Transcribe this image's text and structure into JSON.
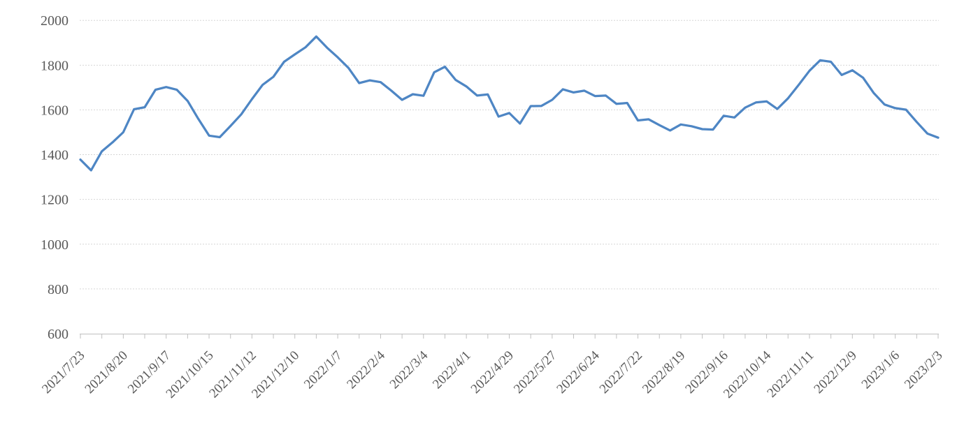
{
  "chart_data": {
    "type": "line",
    "title": "",
    "xlabel": "",
    "ylabel": "",
    "legend": "none",
    "grid": "horizontal-dashed",
    "ylim": [
      600,
      2000
    ],
    "y_ticks": [
      600,
      800,
      1000,
      1200,
      1400,
      1600,
      1800,
      2000
    ],
    "x_label_every": 4,
    "x": [
      "2021/7/23",
      "2021/7/30",
      "2021/8/6",
      "2021/8/13",
      "2021/8/20",
      "2021/8/27",
      "2021/9/3",
      "2021/9/10",
      "2021/9/17",
      "2021/9/24",
      "2021/10/1",
      "2021/10/8",
      "2021/10/15",
      "2021/10/22",
      "2021/10/29",
      "2021/11/5",
      "2021/11/12",
      "2021/11/19",
      "2021/11/26",
      "2021/12/3",
      "2021/12/10",
      "2021/12/17",
      "2021/12/24",
      "2021/12/31",
      "2022/1/7",
      "2022/1/14",
      "2022/1/21",
      "2022/1/28",
      "2022/2/4",
      "2022/2/11",
      "2022/2/18",
      "2022/2/25",
      "2022/3/4",
      "2022/3/11",
      "2022/3/18",
      "2022/3/25",
      "2022/4/1",
      "2022/4/8",
      "2022/4/15",
      "2022/4/22",
      "2022/4/29",
      "2022/5/6",
      "2022/5/13",
      "2022/5/20",
      "2022/5/27",
      "2022/6/3",
      "2022/6/10",
      "2022/6/17",
      "2022/6/24",
      "2022/7/1",
      "2022/7/8",
      "2022/7/15",
      "2022/7/22",
      "2022/7/29",
      "2022/8/5",
      "2022/8/12",
      "2022/8/19",
      "2022/8/26",
      "2022/9/2",
      "2022/9/9",
      "2022/9/16",
      "2022/9/23",
      "2022/9/30",
      "2022/10/7",
      "2022/10/14",
      "2022/10/21",
      "2022/10/28",
      "2022/11/4",
      "2022/11/11",
      "2022/11/18",
      "2022/11/25",
      "2022/12/2",
      "2022/12/9",
      "2022/12/16",
      "2022/12/23",
      "2022/12/30",
      "2023/1/6",
      "2023/1/13",
      "2023/1/20",
      "2023/1/27",
      "2023/2/3"
    ],
    "values": [
      1378,
      1330,
      1415,
      1455,
      1500,
      1603,
      1612,
      1690,
      1702,
      1690,
      1640,
      1560,
      1485,
      1478,
      1528,
      1580,
      1648,
      1712,
      1748,
      1815,
      1848,
      1880,
      1928,
      1878,
      1835,
      1788,
      1720,
      1732,
      1724,
      1686,
      1645,
      1670,
      1663,
      1768,
      1793,
      1734,
      1705,
      1664,
      1669,
      1570,
      1586,
      1539,
      1617,
      1618,
      1645,
      1692,
      1678,
      1686,
      1662,
      1664,
      1627,
      1631,
      1553,
      1558,
      1532,
      1508,
      1535,
      1527,
      1514,
      1512,
      1574,
      1566,
      1610,
      1633,
      1638,
      1604,
      1652,
      1712,
      1775,
      1822,
      1815,
      1756,
      1777,
      1744,
      1675,
      1624,
      1608,
      1601,
      1546,
      1494,
      1476
    ],
    "x_tick_labels": [
      "2021/7/23",
      "2021/8/20",
      "2021/9/17",
      "2021/10/15",
      "2021/11/12",
      "2021/12/10",
      "2022/1/7",
      "2022/2/4",
      "2022/3/4",
      "2022/4/1",
      "2022/4/29",
      "2022/5/27",
      "2022/6/24",
      "2022/7/22",
      "2022/8/19",
      "2022/9/16",
      "2022/10/14",
      "2022/11/11",
      "2022/12/9",
      "2023/1/6",
      "2023/2/3"
    ],
    "line_color": "#4e86c4",
    "line_width": 3.25,
    "label_color": "#595959",
    "gridline_color": "#d6d6d6",
    "axis_color": "#bfbfbf",
    "background_color": "#ffffff"
  }
}
